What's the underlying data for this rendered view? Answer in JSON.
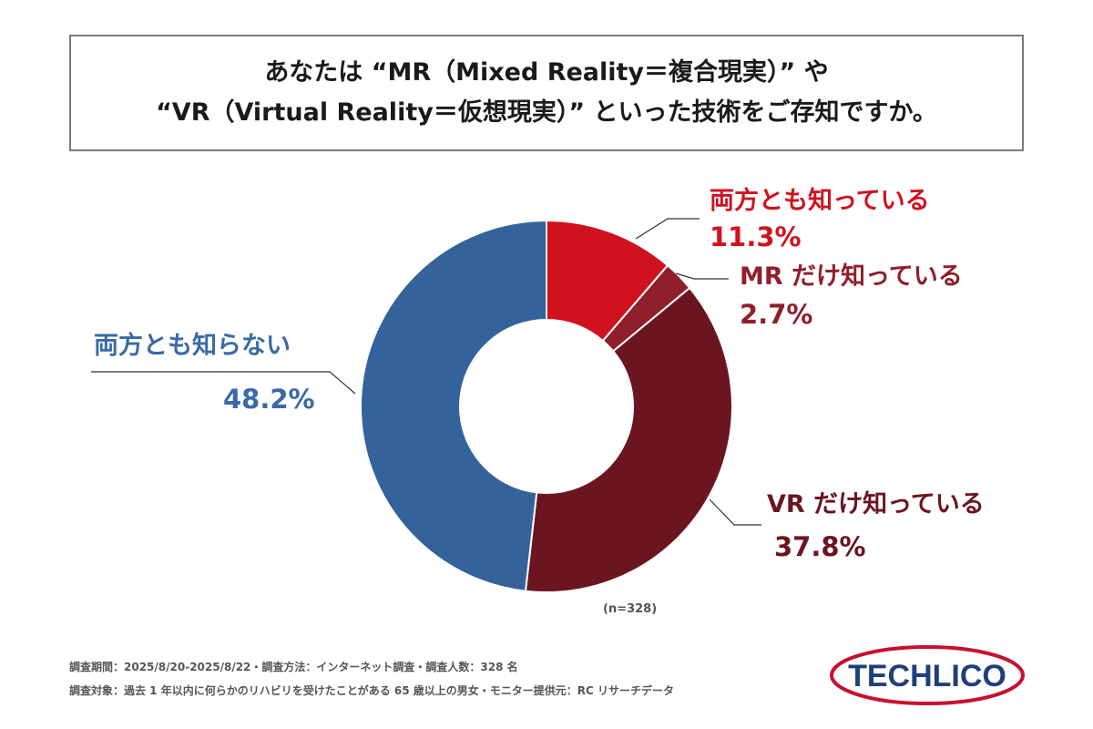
{
  "title": {
    "line1": "あなたは “MR（Mixed Reality＝複合現実）” や",
    "line2": "“VR（Virtual Reality＝仮想現実）” といった技術をご存知ですか。"
  },
  "chart_data": {
    "type": "pie",
    "subtype": "donut",
    "categories": [
      "両方とも知っている",
      "MR だけ知っている",
      "VR だけ知っている",
      "両方とも知らない"
    ],
    "values": [
      11.3,
      2.7,
      37.8,
      48.2
    ],
    "value_labels": [
      "11.3%",
      "2.7%",
      "37.8%",
      "48.2%"
    ],
    "colors": [
      "#d0121e",
      "#8f1f2a",
      "#6b1520",
      "#34639c"
    ],
    "label_colors": [
      "#d0121e",
      "#8f1f2a",
      "#6b1520",
      "#3a6aa6"
    ],
    "n_label": "(n=328)"
  },
  "footer": {
    "line1": "調査期間：2025/8/20-2025/8/22・調査方法：インターネット調査・調査人数：328 名",
    "line2": "調査対象：過去 1 年以内に何らかのリハビリを受けたことがある 65 歳以上の男女・モニター提供元：RC リサーチデータ"
  },
  "logo": {
    "text": "TECHLICO",
    "text_color": "#1f3f7a",
    "ring_color": "#c8102e"
  }
}
